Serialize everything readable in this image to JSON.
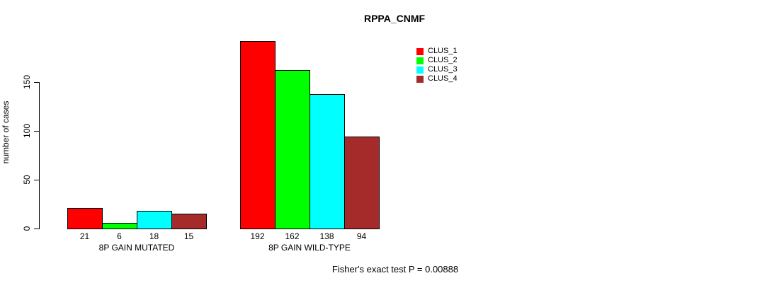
{
  "chart_data": {
    "type": "bar",
    "title": "RPPA_CNMF",
    "ylabel": "number of cases",
    "xlabel": "",
    "categories": [
      "8P GAIN MUTATED",
      "8P GAIN WILD-TYPE"
    ],
    "series": [
      {
        "name": "CLUS_1",
        "color": "#FF0000",
        "values": [
          21,
          192
        ]
      },
      {
        "name": "CLUS_2",
        "color": "#00FF00",
        "values": [
          6,
          162
        ]
      },
      {
        "name": "CLUS_3",
        "color": "#00FFFF",
        "values": [
          18,
          138
        ]
      },
      {
        "name": "CLUS_4",
        "color": "#A52A2A",
        "values": [
          15,
          94
        ]
      }
    ],
    "yticks": [
      0,
      50,
      100,
      150
    ],
    "ylim": [
      0,
      200
    ],
    "grid": false,
    "show_bar_values": true,
    "legend_position": "top-right",
    "annotation": "Fisher's exact test P = 0.00888"
  },
  "legend": {
    "items": [
      {
        "label": "CLUS_1",
        "color": "#FF0000"
      },
      {
        "label": "CLUS_2",
        "color": "#00FF00"
      },
      {
        "label": "CLUS_3",
        "color": "#00FFFF"
      },
      {
        "label": "CLUS_4",
        "color": "#A52A2A"
      }
    ]
  }
}
